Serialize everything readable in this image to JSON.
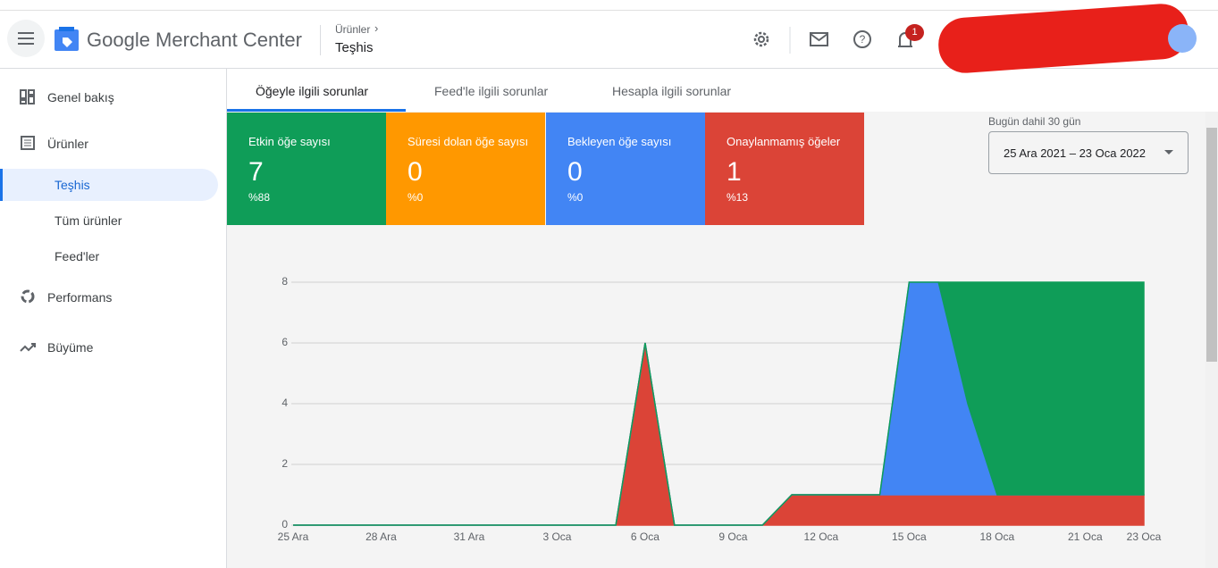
{
  "header": {
    "app_title": "Google Merchant Center",
    "breadcrumb_parent": "Ürünler",
    "breadcrumb_current": "Teşhis",
    "notification_count": "1"
  },
  "sidebar": {
    "items": [
      "Genel bakış",
      "Ürünler",
      "Teşhis",
      "Tüm ürünler",
      "Feed'ler",
      "Performans",
      "Büyüme"
    ]
  },
  "tabs": [
    "Öğeyle ilgili sorunlar",
    "Feed'le ilgili sorunlar",
    "Hesapla ilgili sorunlar"
  ],
  "cards": [
    {
      "label": "Etkin öğe sayısı",
      "value": "7",
      "percent": "%88",
      "color": "#0f9d58"
    },
    {
      "label": "Süresi dolan öğe sayısı",
      "value": "0",
      "percent": "%0",
      "color": "#ff9800"
    },
    {
      "label": "Bekleyen öğe sayısı",
      "value": "0",
      "percent": "%0",
      "color": "#4285f4"
    },
    {
      "label": "Onaylanmamış öğeler",
      "value": "1",
      "percent": "%13",
      "color": "#db4437"
    }
  ],
  "date_range": {
    "label": "Bugün dahil 30 gün",
    "value": "25 Ara 2021 – 23 Oca 2022"
  },
  "chart_data": {
    "type": "stacked_area",
    "categories": [
      "25 Ara",
      null,
      null,
      "28 Ara",
      null,
      null,
      "31 Ara",
      null,
      null,
      "3 Oca",
      null,
      null,
      "6 Oca",
      null,
      null,
      "9 Oca",
      null,
      null,
      "12 Oca",
      null,
      null,
      "15 Oca",
      null,
      null,
      "18 Oca",
      null,
      null,
      "21 Oca",
      null,
      "23 Oca"
    ],
    "series": [
      {
        "color": "#db4437",
        "values": [
          0,
          0,
          0,
          0,
          0,
          0,
          0,
          0,
          0,
          0,
          0,
          0,
          6,
          0,
          0,
          0,
          0,
          1,
          1,
          1,
          1,
          1,
          1,
          1,
          1,
          1,
          1,
          1,
          1,
          1
        ]
      },
      {
        "color": "#4285f4",
        "values": [
          0,
          0,
          0,
          0,
          0,
          0,
          0,
          0,
          0,
          0,
          0,
          0,
          0,
          0,
          0,
          0,
          0,
          0,
          0,
          0,
          0,
          7,
          7,
          3,
          0,
          0,
          0,
          0,
          0,
          0
        ]
      },
      {
        "color": "#0f9d58",
        "values": [
          0,
          0,
          0,
          0,
          0,
          0,
          0,
          0,
          0,
          0,
          0,
          0,
          0,
          0,
          0,
          0,
          0,
          0,
          0,
          0,
          0,
          0,
          0,
          4,
          7,
          7,
          7,
          7,
          7,
          7
        ]
      }
    ],
    "ylim": [
      0,
      8
    ],
    "yticks": [
      0,
      2,
      4,
      6,
      8
    ],
    "grid": true
  }
}
